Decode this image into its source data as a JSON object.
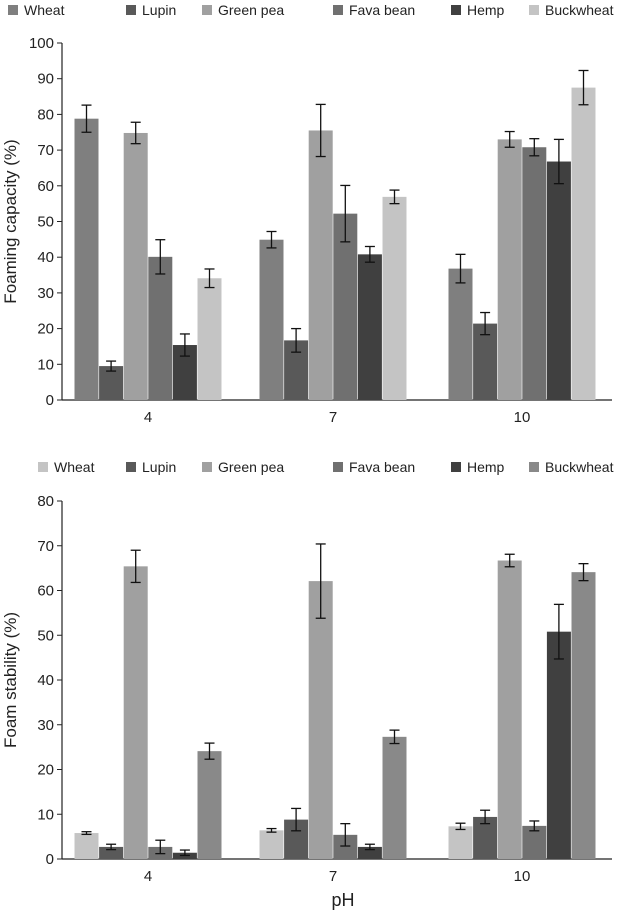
{
  "chart_data": [
    {
      "type": "bar",
      "title": "",
      "xlabel": "",
      "ylabel": "Foaming capacity (%)",
      "ylim": [
        0,
        100
      ],
      "yticks": [
        0,
        10,
        20,
        30,
        40,
        50,
        60,
        70,
        80,
        90,
        100
      ],
      "categories": [
        "4",
        "7",
        "10"
      ],
      "legend": "top",
      "grid": false,
      "series": [
        {
          "name": "Wheat",
          "color": "#7f7f7f",
          "values": [
            78.8,
            44.9,
            36.8
          ],
          "errors": [
            3.8,
            2.3,
            4.0
          ]
        },
        {
          "name": "Lupin",
          "color": "#595959",
          "values": [
            9.5,
            16.7,
            21.4
          ],
          "errors": [
            1.4,
            3.3,
            3.1
          ]
        },
        {
          "name": "Green pea",
          "color": "#a0a0a0",
          "values": [
            74.8,
            75.5,
            73.0
          ],
          "errors": [
            3.0,
            7.3,
            2.2
          ]
        },
        {
          "name": "Fava bean",
          "color": "#707070",
          "values": [
            40.1,
            52.2,
            70.8
          ],
          "errors": [
            4.8,
            7.9,
            2.4
          ]
        },
        {
          "name": "Hemp",
          "color": "#404040",
          "values": [
            15.4,
            40.8,
            66.8
          ],
          "errors": [
            3.1,
            2.2,
            6.2
          ]
        },
        {
          "name": "Buckwheat",
          "color": "#c4c4c4",
          "values": [
            34.1,
            56.9,
            87.5
          ],
          "errors": [
            2.6,
            1.9,
            4.8
          ]
        }
      ]
    },
    {
      "type": "bar",
      "title": "",
      "xlabel": "pH",
      "ylabel": "Foam stability (%)",
      "ylim": [
        0,
        80
      ],
      "yticks": [
        0,
        10,
        20,
        30,
        40,
        50,
        60,
        70,
        80
      ],
      "categories": [
        "4",
        "7",
        "10"
      ],
      "legend": "top",
      "grid": false,
      "series": [
        {
          "name": "Wheat",
          "color": "#c4c4c4",
          "values": [
            5.8,
            6.4,
            7.3
          ],
          "errors": [
            0.3,
            0.4,
            0.7
          ]
        },
        {
          "name": "Lupin",
          "color": "#595959",
          "values": [
            2.7,
            8.8,
            9.4
          ],
          "errors": [
            0.6,
            2.5,
            1.5
          ]
        },
        {
          "name": "Green pea",
          "color": "#a0a0a0",
          "values": [
            65.4,
            62.1,
            66.7
          ],
          "errors": [
            3.6,
            8.3,
            1.4
          ]
        },
        {
          "name": "Fava bean",
          "color": "#707070",
          "values": [
            2.7,
            5.4,
            7.4
          ],
          "errors": [
            1.5,
            2.5,
            1.1
          ]
        },
        {
          "name": "Hemp",
          "color": "#404040",
          "values": [
            1.4,
            2.7,
            50.8
          ],
          "errors": [
            0.6,
            0.6,
            6.1
          ]
        },
        {
          "name": "Buckwheat",
          "color": "#898989",
          "values": [
            24.1,
            27.3,
            64.1
          ],
          "errors": [
            1.8,
            1.5,
            1.9
          ]
        }
      ]
    }
  ]
}
